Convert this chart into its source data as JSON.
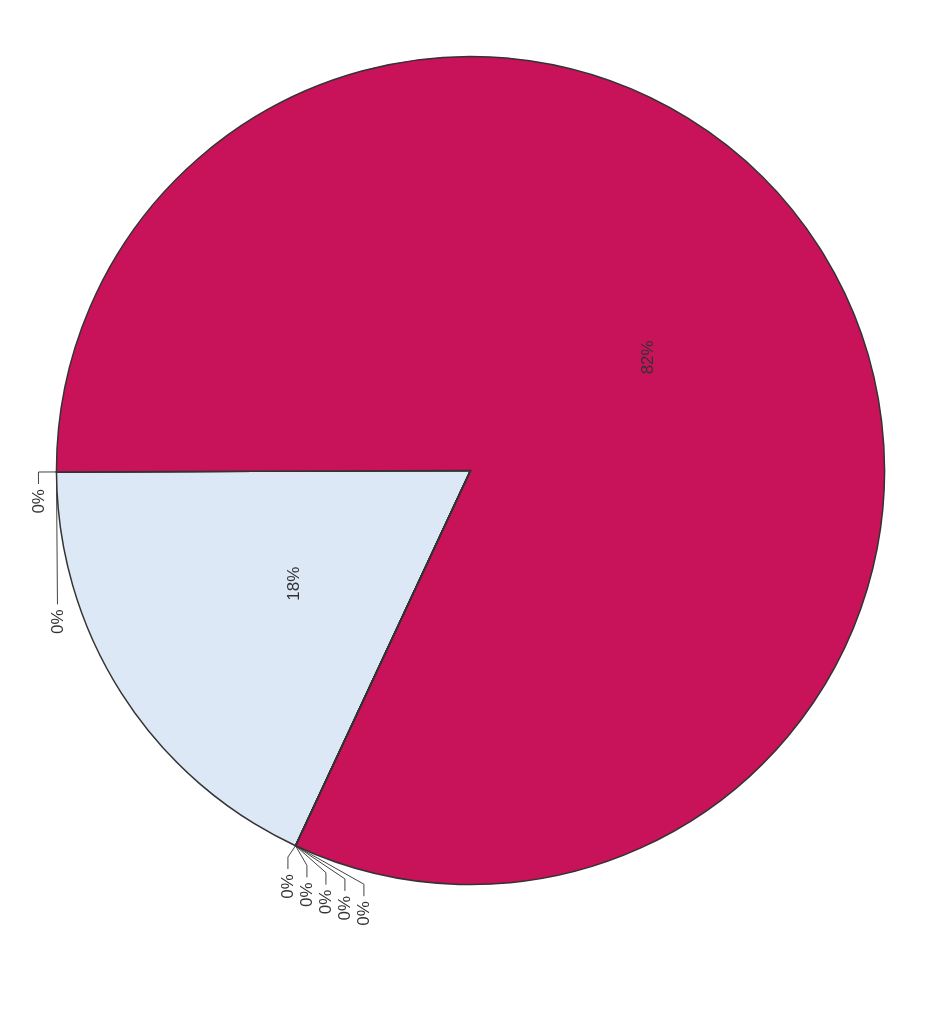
{
  "chart_data": {
    "type": "pie",
    "categories": [
      null,
      null,
      null,
      null,
      null,
      null,
      null,
      null,
      null
    ],
    "values": [
      18,
      0,
      0,
      82,
      0,
      0,
      0,
      0,
      0
    ],
    "colors": [
      "#dce8f6",
      "#6a7fb0",
      "#8fa3c8",
      "#c8135a",
      "#4a4a8a",
      "#7a3c7a",
      "#3c6a9a",
      "#9a9ac8",
      "#5a5a5a"
    ],
    "value_labels": [
      "18%",
      "0%",
      "0%",
      "82%",
      "0%",
      "0%",
      "0%",
      "0%",
      "0%"
    ]
  }
}
